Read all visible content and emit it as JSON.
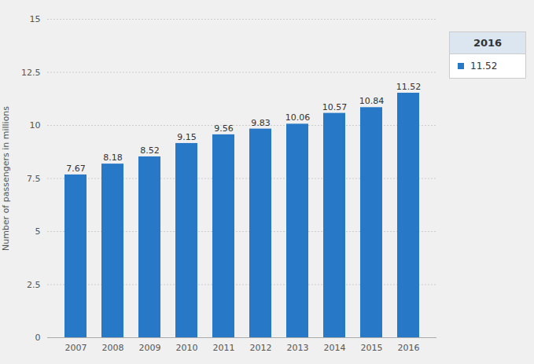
{
  "chart_data": {
    "type": "bar",
    "categories": [
      "2007",
      "2008",
      "2009",
      "2010",
      "2011",
      "2012",
      "2013",
      "2014",
      "2015",
      "2016"
    ],
    "values": [
      7.67,
      8.18,
      8.52,
      9.15,
      9.56,
      9.83,
      10.06,
      10.57,
      10.84,
      11.52
    ],
    "color": "#2878C8",
    "ylabel": "Number of passengers in millions",
    "ylim": [
      0,
      15
    ],
    "yticks": [
      0,
      2.5,
      5,
      7.5,
      10,
      12.5,
      15
    ],
    "grid": true,
    "data_labels": true,
    "annotations": [
      "2016",
      "11.52"
    ]
  }
}
